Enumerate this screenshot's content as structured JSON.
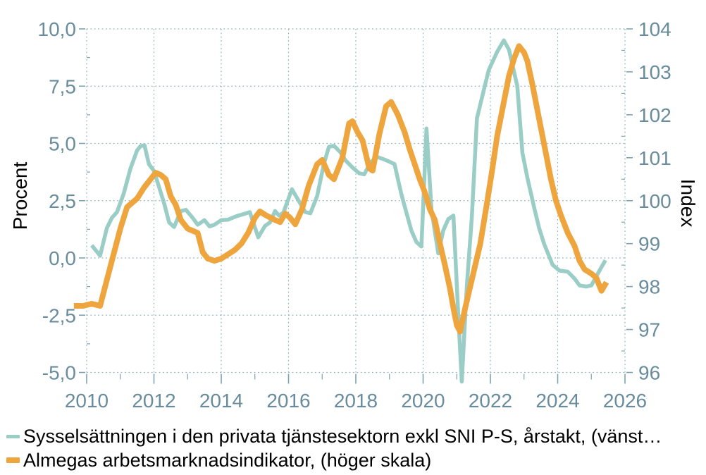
{
  "chart_data": {
    "type": "line",
    "title": "",
    "ylabel_left": "Procent",
    "ylabel_right": "Index",
    "grid": "dotted",
    "legend_position": "bottom-left",
    "x_axis": {
      "tick_labels": [
        "2010",
        "2012",
        "2014",
        "2016",
        "2018",
        "2020",
        "2022",
        "2024",
        "2026"
      ],
      "tick_values": [
        2010,
        2012,
        2014,
        2016,
        2018,
        2020,
        2022,
        2024,
        2026
      ],
      "minor_tick_values": [
        2011,
        2013,
        2015,
        2017,
        2019,
        2021,
        2023,
        2025
      ],
      "range": [
        2010,
        2026
      ]
    },
    "y_left": {
      "tick_labels": [
        "10,0",
        "7,5",
        "5,0",
        "2,5",
        "0,0",
        "-2,5",
        "-5,0"
      ],
      "tick_values": [
        10,
        7.5,
        5,
        2.5,
        0,
        -2.5,
        -5
      ],
      "minor_step": 1.25,
      "range": [
        -5,
        10
      ]
    },
    "y_right": {
      "tick_labels": [
        "104",
        "103",
        "102",
        "101",
        "100",
        "99",
        "98",
        "97",
        "96"
      ],
      "tick_values": [
        104,
        103,
        102,
        101,
        100,
        99,
        98,
        97,
        96
      ],
      "minor_step": 0.5,
      "range": [
        96,
        104
      ]
    },
    "series": [
      {
        "key": "employment-line",
        "name": "Sysselsättningen i den privata tjänstesektorn exkl SNI P-S, årstakt, (vänst…",
        "axis": "left",
        "color": "#9acdc6",
        "width": 5.5,
        "points": [
          [
            2010.15,
            0.55
          ],
          [
            2010.4,
            0.1
          ],
          [
            2010.6,
            1.3
          ],
          [
            2010.75,
            1.75
          ],
          [
            2010.9,
            2.0
          ],
          [
            2011.1,
            2.8
          ],
          [
            2011.3,
            3.9
          ],
          [
            2011.5,
            4.7
          ],
          [
            2011.6,
            4.88
          ],
          [
            2011.72,
            4.92
          ],
          [
            2011.85,
            4.1
          ],
          [
            2012.0,
            3.8
          ],
          [
            2012.15,
            3.1
          ],
          [
            2012.3,
            2.4
          ],
          [
            2012.45,
            1.55
          ],
          [
            2012.6,
            1.35
          ],
          [
            2012.8,
            2.05
          ],
          [
            2012.95,
            2.1
          ],
          [
            2013.15,
            1.75
          ],
          [
            2013.3,
            1.45
          ],
          [
            2013.5,
            1.65
          ],
          [
            2013.65,
            1.38
          ],
          [
            2013.8,
            1.45
          ],
          [
            2014.0,
            1.65
          ],
          [
            2014.2,
            1.67
          ],
          [
            2014.45,
            1.82
          ],
          [
            2014.7,
            1.93
          ],
          [
            2014.85,
            2.0
          ],
          [
            2015.1,
            0.9
          ],
          [
            2015.3,
            1.4
          ],
          [
            2015.45,
            1.55
          ],
          [
            2015.6,
            2.05
          ],
          [
            2015.72,
            1.85
          ],
          [
            2015.85,
            1.98
          ],
          [
            2016.1,
            3.0
          ],
          [
            2016.3,
            2.5
          ],
          [
            2016.5,
            2.0
          ],
          [
            2016.65,
            1.95
          ],
          [
            2016.85,
            2.7
          ],
          [
            2017.05,
            4.1
          ],
          [
            2017.2,
            4.85
          ],
          [
            2017.35,
            4.9
          ],
          [
            2017.55,
            4.6
          ],
          [
            2017.7,
            4.25
          ],
          [
            2017.9,
            3.95
          ],
          [
            2018.1,
            3.7
          ],
          [
            2018.25,
            3.65
          ],
          [
            2018.45,
            4.2
          ],
          [
            2018.65,
            4.4
          ],
          [
            2018.85,
            4.3
          ],
          [
            2019.0,
            4.2
          ],
          [
            2019.15,
            4.1
          ],
          [
            2019.35,
            2.8
          ],
          [
            2019.5,
            2.0
          ],
          [
            2019.65,
            1.2
          ],
          [
            2019.8,
            0.7
          ],
          [
            2019.95,
            0.5
          ],
          [
            2020.1,
            5.65
          ],
          [
            2020.25,
            2.1
          ],
          [
            2020.45,
            0.2
          ],
          [
            2020.6,
            1.2
          ],
          [
            2020.75,
            1.7
          ],
          [
            2020.9,
            1.85
          ],
          [
            2021.05,
            -2.6
          ],
          [
            2021.15,
            -5.4
          ],
          [
            2021.3,
            -1.2
          ],
          [
            2021.45,
            1.8
          ],
          [
            2021.6,
            6.1
          ],
          [
            2021.8,
            7.3
          ],
          [
            2021.95,
            8.2
          ],
          [
            2022.2,
            9.0
          ],
          [
            2022.4,
            9.5
          ],
          [
            2022.55,
            9.1
          ],
          [
            2022.8,
            7.5
          ],
          [
            2022.95,
            4.6
          ],
          [
            2023.1,
            3.5
          ],
          [
            2023.3,
            2.2
          ],
          [
            2023.45,
            1.3
          ],
          [
            2023.6,
            0.6
          ],
          [
            2023.85,
            -0.3
          ],
          [
            2024.05,
            -0.55
          ],
          [
            2024.3,
            -0.6
          ],
          [
            2024.5,
            -0.9
          ],
          [
            2024.65,
            -1.2
          ],
          [
            2024.85,
            -1.25
          ],
          [
            2025.0,
            -1.2
          ],
          [
            2025.15,
            -0.8
          ],
          [
            2025.3,
            -0.4
          ],
          [
            2025.42,
            -0.1
          ]
        ]
      },
      {
        "key": "indicator-line",
        "name": "Almegas arbetsmarknadsindikator, (höger skala)",
        "axis": "right",
        "color": "#efa53e",
        "width": 8,
        "points": [
          [
            2009.62,
            97.55
          ],
          [
            2009.9,
            97.55
          ],
          [
            2010.15,
            97.6
          ],
          [
            2010.4,
            97.55
          ],
          [
            2010.6,
            98.15
          ],
          [
            2010.8,
            98.75
          ],
          [
            2011.0,
            99.35
          ],
          [
            2011.2,
            99.85
          ],
          [
            2011.35,
            99.95
          ],
          [
            2011.5,
            100.05
          ],
          [
            2011.7,
            100.3
          ],
          [
            2011.9,
            100.5
          ],
          [
            2012.05,
            100.65
          ],
          [
            2012.2,
            100.6
          ],
          [
            2012.35,
            100.5
          ],
          [
            2012.5,
            100.1
          ],
          [
            2012.65,
            99.9
          ],
          [
            2012.8,
            99.55
          ],
          [
            2013.0,
            99.35
          ],
          [
            2013.15,
            99.3
          ],
          [
            2013.3,
            99.25
          ],
          [
            2013.45,
            98.8
          ],
          [
            2013.6,
            98.65
          ],
          [
            2013.8,
            98.6
          ],
          [
            2014.0,
            98.65
          ],
          [
            2014.2,
            98.75
          ],
          [
            2014.4,
            98.85
          ],
          [
            2014.6,
            99.0
          ],
          [
            2014.8,
            99.25
          ],
          [
            2015.0,
            99.6
          ],
          [
            2015.15,
            99.75
          ],
          [
            2015.35,
            99.65
          ],
          [
            2015.6,
            99.55
          ],
          [
            2015.75,
            99.5
          ],
          [
            2015.9,
            99.7
          ],
          [
            2016.05,
            99.6
          ],
          [
            2016.2,
            99.45
          ],
          [
            2016.4,
            99.8
          ],
          [
            2016.6,
            100.35
          ],
          [
            2016.85,
            100.85
          ],
          [
            2017.0,
            100.95
          ],
          [
            2017.2,
            100.6
          ],
          [
            2017.35,
            100.5
          ],
          [
            2017.6,
            101.0
          ],
          [
            2017.8,
            101.8
          ],
          [
            2017.9,
            101.85
          ],
          [
            2018.05,
            101.6
          ],
          [
            2018.2,
            101.4
          ],
          [
            2018.4,
            100.75
          ],
          [
            2018.5,
            100.7
          ],
          [
            2018.7,
            101.55
          ],
          [
            2018.9,
            102.2
          ],
          [
            2019.05,
            102.3
          ],
          [
            2019.25,
            102.0
          ],
          [
            2019.45,
            101.6
          ],
          [
            2019.6,
            101.2
          ],
          [
            2019.75,
            100.85
          ],
          [
            2019.9,
            100.5
          ],
          [
            2020.05,
            100.2
          ],
          [
            2020.2,
            99.8
          ],
          [
            2020.35,
            99.55
          ],
          [
            2020.5,
            99.0
          ],
          [
            2020.65,
            98.5
          ],
          [
            2020.8,
            97.95
          ],
          [
            2020.9,
            97.5
          ],
          [
            2021.0,
            97.1
          ],
          [
            2021.1,
            96.95
          ],
          [
            2021.25,
            97.5
          ],
          [
            2021.4,
            98.0
          ],
          [
            2021.55,
            98.5
          ],
          [
            2021.7,
            99.0
          ],
          [
            2021.9,
            99.95
          ],
          [
            2022.05,
            100.7
          ],
          [
            2022.2,
            101.5
          ],
          [
            2022.4,
            102.3
          ],
          [
            2022.55,
            102.9
          ],
          [
            2022.7,
            103.3
          ],
          [
            2022.85,
            103.6
          ],
          [
            2023.0,
            103.45
          ],
          [
            2023.1,
            103.25
          ],
          [
            2023.25,
            102.7
          ],
          [
            2023.45,
            101.9
          ],
          [
            2023.65,
            101.1
          ],
          [
            2023.8,
            100.5
          ],
          [
            2023.95,
            100.0
          ],
          [
            2024.1,
            99.65
          ],
          [
            2024.3,
            99.25
          ],
          [
            2024.5,
            98.95
          ],
          [
            2024.65,
            98.6
          ],
          [
            2024.8,
            98.4
          ],
          [
            2025.0,
            98.3
          ],
          [
            2025.15,
            98.2
          ],
          [
            2025.3,
            97.9
          ],
          [
            2025.45,
            98.1
          ]
        ]
      }
    ]
  },
  "colors": {
    "employment_line": "#9acdc6",
    "indicator_line": "#efa53e",
    "tick_label": "#698c9d",
    "gridline": "#8fb3c0",
    "text": "#000000",
    "background": "#ffffff"
  }
}
